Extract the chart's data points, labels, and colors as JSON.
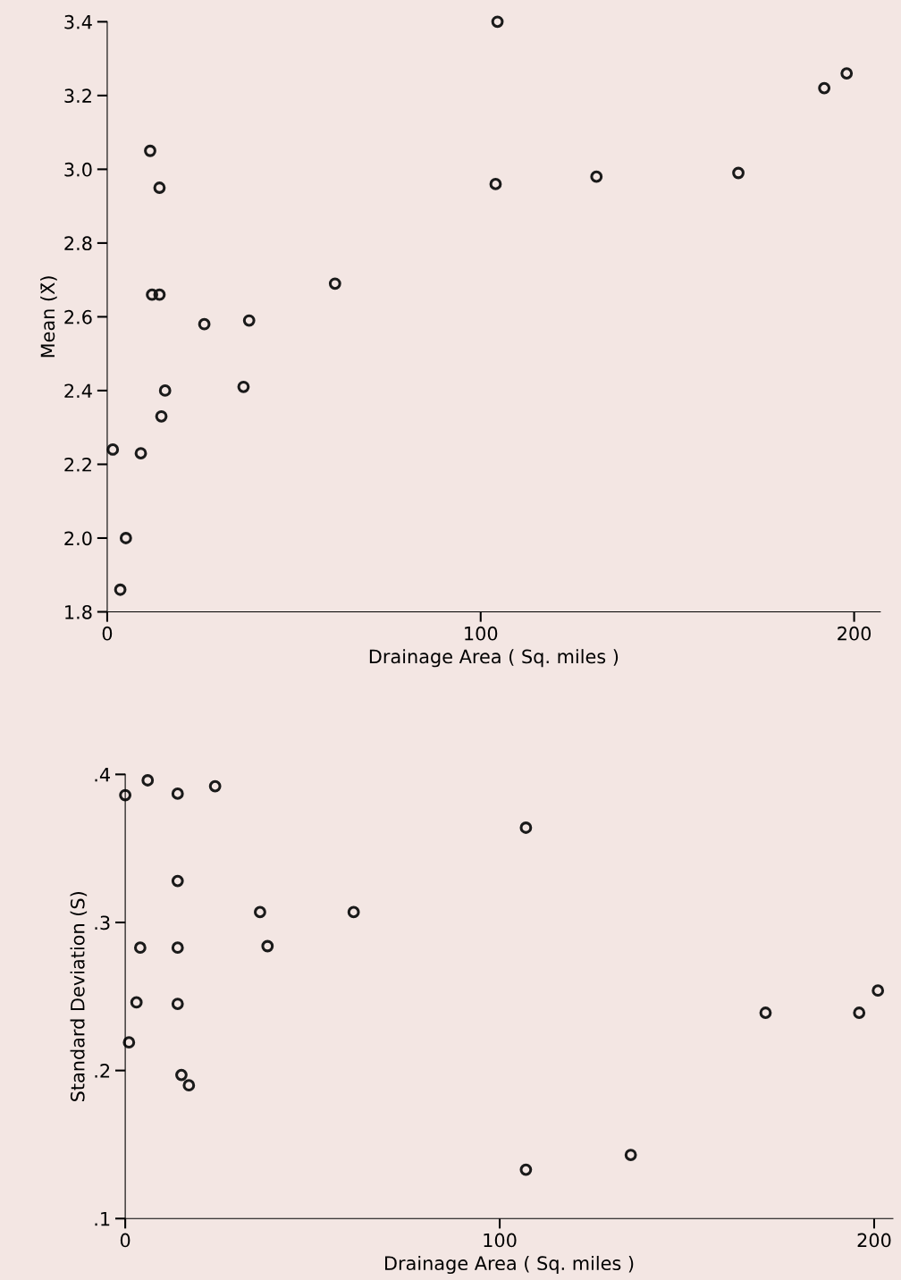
{
  "chart_data": [
    {
      "type": "scatter",
      "xlabel": "Drainage Area ( Sq. miles )",
      "ylabel": "Mean (X̄)",
      "marker": "circle",
      "grid": false,
      "legend": false,
      "xlim": [
        0,
        207
      ],
      "xticks": [
        0,
        100,
        200
      ],
      "ylim": [
        1.8,
        3.4
      ],
      "yticks": [
        {
          "value": 1.8,
          "label": "1.8"
        },
        {
          "value": 2.0,
          "label": "2.0"
        },
        {
          "value": 2.2,
          "label": "2.2"
        },
        {
          "value": 2.4,
          "label": "2.4"
        },
        {
          "value": 2.6,
          "label": "2.6"
        },
        {
          "value": 2.8,
          "label": "2.8"
        },
        {
          "value": 3.0,
          "label": "3.0"
        },
        {
          "value": 3.2,
          "label": "3.2"
        },
        {
          "value": 3.4,
          "label": "3.4"
        }
      ],
      "series": [
        {
          "color": "#1a1a1a",
          "x": [
            104.5,
            192,
            198,
            11.5,
            14,
            104,
            131,
            169,
            61,
            12,
            14,
            26,
            38,
            15.5,
            36.5,
            14.5,
            1.5,
            9,
            5,
            3.5
          ],
          "values": [
            3.4,
            3.22,
            3.26,
            3.05,
            2.95,
            2.96,
            2.98,
            2.99,
            2.69,
            2.66,
            2.66,
            2.58,
            2.59,
            2.4,
            2.41,
            2.33,
            2.24,
            2.23,
            2.0,
            1.86
          ]
        }
      ]
    },
    {
      "type": "scatter",
      "xlabel": "Drainage Area ( Sq. miles )",
      "ylabel": "Standard Deviation (S)",
      "marker": "circle",
      "grid": false,
      "legend": false,
      "xlim": [
        0,
        205
      ],
      "xticks": [
        0,
        100,
        200
      ],
      "ylim": [
        0.1,
        0.4
      ],
      "yticks": [
        {
          "value": 0.1,
          "label": ".1"
        },
        {
          "value": 0.2,
          "label": ".2"
        },
        {
          "value": 0.3,
          "label": ".3"
        },
        {
          "value": 0.4,
          "label": ".4"
        }
      ],
      "series": [
        {
          "color": "#1a1a1a",
          "x": [
            0,
            6,
            14,
            24,
            107,
            14,
            36,
            61,
            4,
            14,
            38,
            3,
            14,
            1,
            15,
            17,
            171,
            196,
            201,
            107,
            135
          ],
          "values": [
            0.386,
            0.396,
            0.387,
            0.392,
            0.364,
            0.328,
            0.307,
            0.307,
            0.283,
            0.283,
            0.284,
            0.246,
            0.245,
            0.219,
            0.197,
            0.19,
            0.239,
            0.239,
            0.254,
            0.133,
            0.143
          ]
        }
      ]
    }
  ]
}
